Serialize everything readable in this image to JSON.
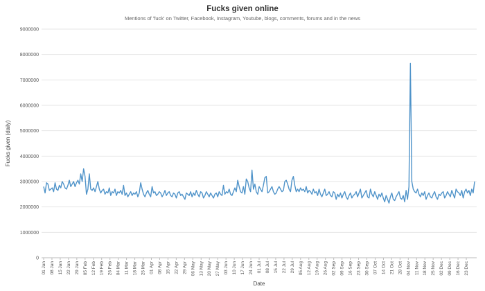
{
  "title": "Fucks given online",
  "subtitle": "Mentions of 'fuck' on Twitter, Facebook, Instagram, Youtube, blogs, comments, forums and in the news",
  "colors": {
    "line": "#4f93c9",
    "grid": "#e6e6e6",
    "axis": "#bbbbbb"
  },
  "chart_data": {
    "type": "line",
    "title": "Fucks given online",
    "subtitle": "Mentions of 'fuck' on Twitter, Facebook, Instagram, Youtube, blogs, comments, forums and in the news",
    "xlabel": "Date",
    "ylabel": "Fucks given (daily)",
    "ylim": [
      0,
      9000000
    ],
    "y_ticks": [
      0,
      1000000,
      2000000,
      3000000,
      4000000,
      5000000,
      6000000,
      7000000,
      8000000,
      9000000
    ],
    "grid": true,
    "x_ticks": [
      "01 Jan",
      "08 Jan",
      "15 Jan",
      "22 Jan",
      "29 Jan",
      "05 Feb",
      "12 Feb",
      "19 Feb",
      "26 Feb",
      "04 Mar",
      "11 Mar",
      "18 Mar",
      "25 Mar",
      "01 Apr",
      "08 Apr",
      "15 Apr",
      "22 Apr",
      "29 Apr",
      "06 May",
      "13 May",
      "20 May",
      "27 May",
      "03 Jun",
      "10 Jun",
      "17 Jun",
      "24 Jun",
      "01 Jul",
      "08 Jul",
      "15 Jul",
      "22 Jul",
      "29 Jul",
      "05 Aug",
      "12 Aug",
      "19 Aug",
      "26 Aug",
      "02 Sep",
      "09 Sep",
      "16 Sep",
      "23 Sep",
      "30 Sep",
      "07 Oct",
      "14 Oct",
      "21 Oct",
      "28 Oct",
      "04 Nov",
      "11 Nov",
      "18 Nov",
      "25 Nov",
      "02 Dec",
      "09 Dec",
      "16 Dec",
      "23 Dec"
    ],
    "series": [
      {
        "values": [
          2800000,
          2550000,
          2950000,
          2900000,
          2650000,
          2700000,
          2750000,
          2600000,
          2950000,
          2700000,
          2650000,
          2850000,
          2750000,
          3000000,
          2900000,
          2750000,
          2700000,
          2850000,
          3050000,
          2800000,
          2900000,
          3000000,
          2800000,
          2950000,
          3050000,
          2900000,
          3300000,
          3000000,
          3500000,
          3200000,
          2500000,
          2700000,
          3300000,
          2700000,
          2650000,
          2750000,
          2600000,
          2800000,
          3000000,
          2700000,
          2550000,
          2650000,
          2700000,
          2500000,
          2600000,
          2550000,
          2750000,
          2450000,
          2600000,
          2550000,
          2700000,
          2450000,
          2600000,
          2550000,
          2650000,
          2500000,
          2850000,
          2450000,
          2550000,
          2400000,
          2500000,
          2600000,
          2450000,
          2550000,
          2500000,
          2600000,
          2400000,
          2550000,
          2950000,
          2700000,
          2500000,
          2400000,
          2550000,
          2650000,
          2500000,
          2400000,
          2800000,
          2550000,
          2600000,
          2450000,
          2500000,
          2600000,
          2550000,
          2400000,
          2500000,
          2650000,
          2450000,
          2550000,
          2600000,
          2450000,
          2400000,
          2550000,
          2500000,
          2350000,
          2550000,
          2600000,
          2450000,
          2500000,
          2400000,
          2300000,
          2550000,
          2500000,
          2450000,
          2600000,
          2400000,
          2550000,
          2450000,
          2650000,
          2500000,
          2400000,
          2600000,
          2550000,
          2350000,
          2450000,
          2600000,
          2500000,
          2400000,
          2550000,
          2450000,
          2350000,
          2500000,
          2550000,
          2400000,
          2600000,
          2500000,
          2450000,
          2850000,
          2500000,
          2600000,
          2550000,
          2700000,
          2500000,
          2450000,
          2600000,
          2750000,
          2600000,
          3050000,
          2800000,
          2600000,
          2550000,
          2800000,
          2500000,
          3100000,
          3000000,
          2750000,
          2600000,
          3450000,
          2700000,
          2900000,
          2600000,
          2500000,
          2800000,
          2700000,
          2600000,
          2850000,
          3150000,
          3200000,
          2550000,
          2600000,
          2700000,
          2800000,
          2600000,
          2500000,
          2550000,
          2700000,
          2800000,
          2700000,
          2600000,
          2650000,
          3000000,
          3050000,
          2900000,
          2700000,
          2600000,
          3050000,
          3200000,
          2850000,
          2600000,
          2700000,
          2600000,
          2750000,
          2650000,
          2700000,
          2600000,
          2800000,
          2550000,
          2650000,
          2600000,
          2500000,
          2700000,
          2550000,
          2600000,
          2450000,
          2700000,
          2500000,
          2400000,
          2550000,
          2700000,
          2450000,
          2500000,
          2600000,
          2450000,
          2400000,
          2600000,
          2550000,
          2300000,
          2500000,
          2400000,
          2550000,
          2350000,
          2500000,
          2600000,
          2400000,
          2300000,
          2450000,
          2550000,
          2350000,
          2450000,
          2500000,
          2600000,
          2400000,
          2550000,
          2700000,
          2350000,
          2450000,
          2550000,
          2650000,
          2400000,
          2350000,
          2700000,
          2500000,
          2400000,
          2600000,
          2450000,
          2300000,
          2500000,
          2400000,
          2550000,
          2350000,
          2200000,
          2450000,
          2300000,
          2150000,
          2400000,
          2550000,
          2300000,
          2250000,
          2400000,
          2500000,
          2600000,
          2350000,
          2300000,
          2450000,
          2200000,
          2650000,
          2300000,
          2800000,
          7650000,
          3000000,
          2700000,
          2600000,
          2550000,
          2700000,
          2500000,
          2400000,
          2550000,
          2450000,
          2600000,
          2300000,
          2450000,
          2550000,
          2400000,
          2350000,
          2500000,
          2600000,
          2400000,
          2300000,
          2500000,
          2450000,
          2550000,
          2600000,
          2350000,
          2450000,
          2600000,
          2500000,
          2400000,
          2650000,
          2500000,
          2350000,
          2700000,
          2600000,
          2550000,
          2450000,
          2650000,
          2350000,
          2600000,
          2700000,
          2550000,
          2650000,
          2450000,
          2700000,
          2550000,
          3000000
        ]
      }
    ]
  }
}
